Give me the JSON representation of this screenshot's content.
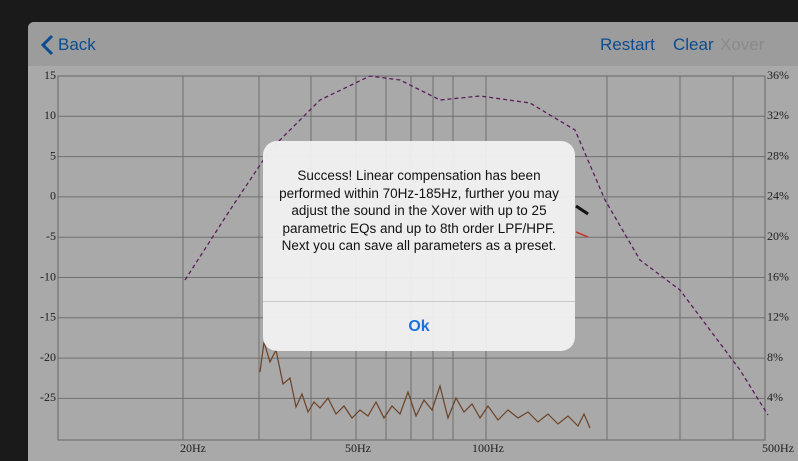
{
  "nav": {
    "back": "Back",
    "restart": "Restart",
    "clear": "Clear",
    "xover": "Xover"
  },
  "chart": {
    "left_ticks": [
      "15",
      "10",
      "5",
      "0",
      "-5",
      "-10",
      "-15",
      "-20",
      "-25"
    ],
    "right_ticks": [
      "36%",
      "32%",
      "28%",
      "24%",
      "20%",
      "16%",
      "12%",
      "8%",
      "4%"
    ],
    "x_ticks": [
      "20Hz",
      "50Hz",
      "100Hz",
      "500Hz"
    ]
  },
  "dialog": {
    "message": "Success! Linear compensation has been performed within 70Hz-185Hz, further you may adjust the sound in the Xover with up to 25 parametric EQs and up to 8th order LPF/HPF. Next you can save all parameters as a preset.",
    "button": "Ok"
  }
}
